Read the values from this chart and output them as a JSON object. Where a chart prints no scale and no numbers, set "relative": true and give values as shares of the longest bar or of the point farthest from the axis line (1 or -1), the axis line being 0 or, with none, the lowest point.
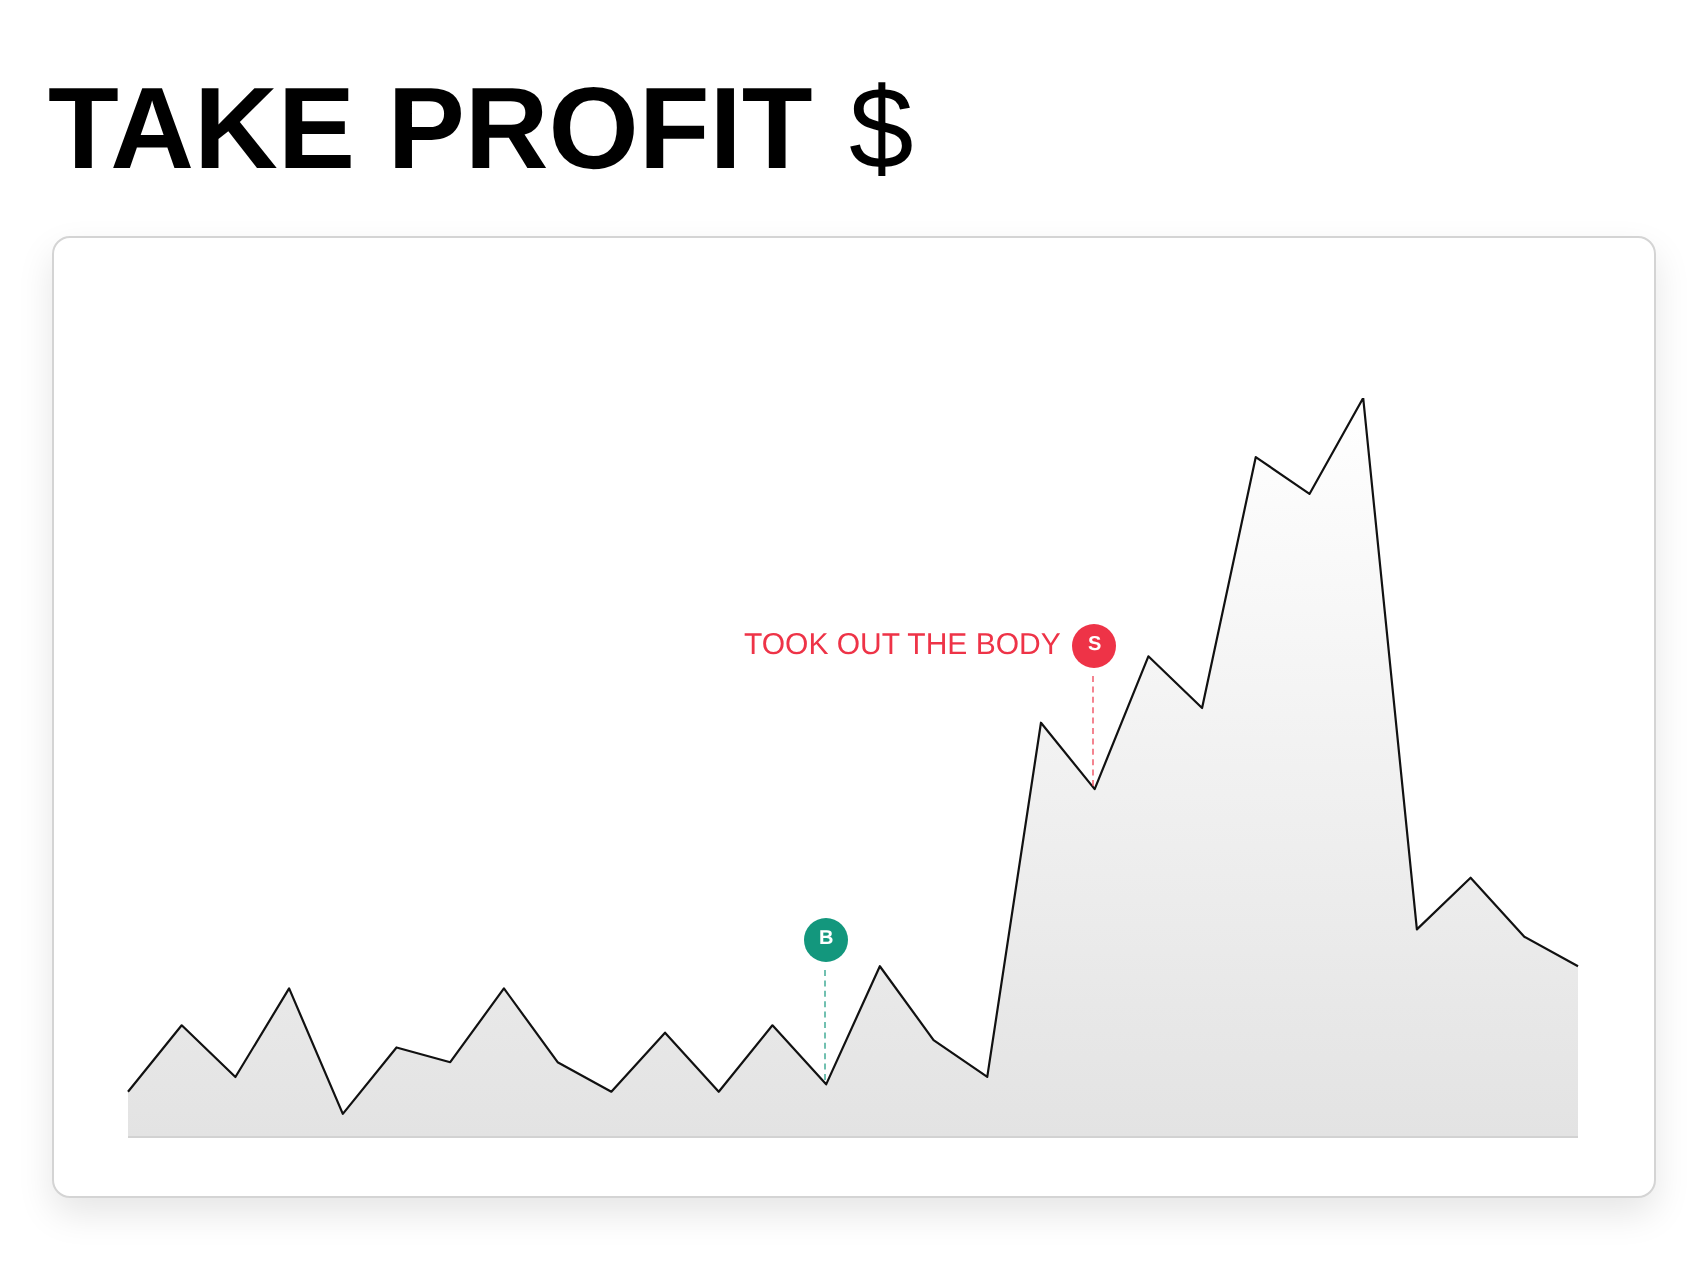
{
  "chart_data": {
    "type": "area",
    "title": "TAKE PROFIT $",
    "relative": true,
    "categories": [
      null,
      null,
      null,
      null,
      null,
      null,
      null,
      null,
      null,
      null,
      null,
      null,
      null,
      null,
      null,
      null,
      null,
      null,
      null,
      null,
      null,
      null,
      null,
      null,
      null,
      null,
      null,
      null
    ],
    "values": [
      0.06,
      0.15,
      0.08,
      0.2,
      0.03,
      0.12,
      0.1,
      0.2,
      0.1,
      0.06,
      0.14,
      0.06,
      0.15,
      0.07,
      0.23,
      0.13,
      0.08,
      0.56,
      0.47,
      0.65,
      0.58,
      0.92,
      0.87,
      1,
      0.28,
      0.35,
      0.27,
      0.23
    ],
    "color": "#111111",
    "annotations": [
      {
        "text": "B",
        "y": 0.07
      },
      {
        "text": "S",
        "y": 0.47
      },
      "TOOK OUT THE BODY"
    ]
  }
}
